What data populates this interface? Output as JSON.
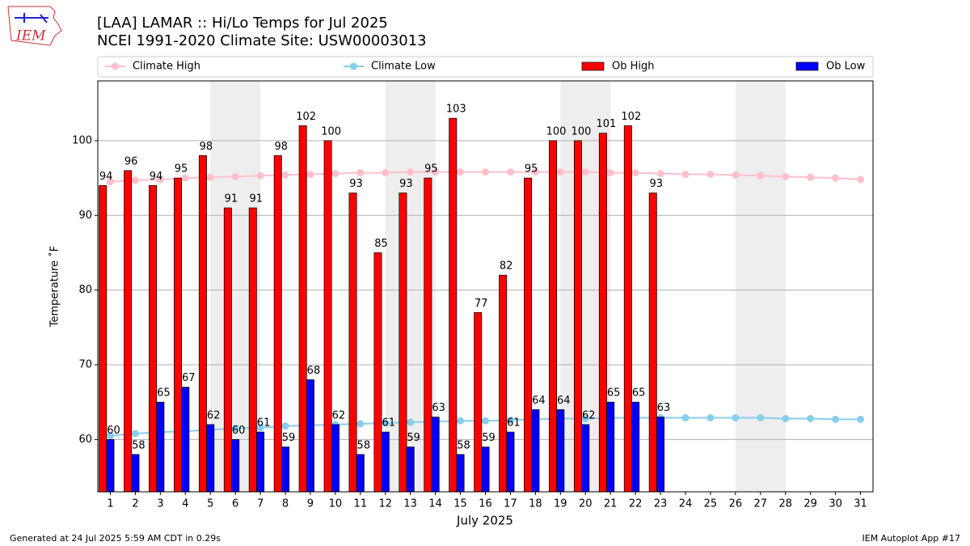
{
  "logo_text": "IEM",
  "footer_left": "Generated at 24 Jul 2025 5:59 AM CDT in 0.29s",
  "footer_right": "IEM Autoplot App #17",
  "chart_data": {
    "type": "bar",
    "title": "[LAA] LAMAR :: Hi/Lo Temps for Jul 2025",
    "subtitle": "NCEI 1991-2020 Climate Site: USW00003013",
    "ylabel": "Temperature ˚F",
    "xlabel": "July 2025",
    "categories": [
      "1",
      "2",
      "3",
      "4",
      "5",
      "6",
      "7",
      "8",
      "9",
      "10",
      "11",
      "12",
      "13",
      "14",
      "15",
      "16",
      "17",
      "18",
      "19",
      "20",
      "21",
      "22",
      "23",
      "24",
      "25",
      "26",
      "27",
      "28",
      "29",
      "30",
      "31"
    ],
    "weekend_bands": [
      [
        5,
        6
      ],
      [
        12,
        13
      ],
      [
        19,
        20
      ],
      [
        26,
        27
      ]
    ],
    "series": [
      {
        "name": "Climate High",
        "kind": "line",
        "color": "#ffc0cb",
        "values": [
          94.5,
          94.7,
          94.8,
          95.0,
          95.1,
          95.2,
          95.3,
          95.4,
          95.5,
          95.6,
          95.7,
          95.7,
          95.8,
          95.8,
          95.8,
          95.8,
          95.8,
          95.8,
          95.8,
          95.8,
          95.7,
          95.7,
          95.6,
          95.5,
          95.5,
          95.4,
          95.3,
          95.2,
          95.1,
          95.0,
          94.8
        ]
      },
      {
        "name": "Climate Low",
        "kind": "line",
        "color": "#87ceeb",
        "values": [
          60.5,
          60.8,
          61.0,
          61.1,
          61.3,
          61.5,
          61.6,
          61.8,
          61.9,
          62.0,
          62.1,
          62.2,
          62.3,
          62.4,
          62.5,
          62.5,
          62.6,
          62.7,
          62.8,
          62.8,
          62.9,
          62.9,
          62.9,
          62.9,
          62.9,
          62.9,
          62.9,
          62.8,
          62.8,
          62.7,
          62.7
        ]
      },
      {
        "name": "Ob High",
        "kind": "bar",
        "color": "#ff0000",
        "values": [
          94,
          96,
          94,
          95,
          98,
          91,
          91,
          98,
          102,
          100,
          93,
          85,
          93,
          95,
          103,
          77,
          82,
          95,
          100,
          100,
          101,
          102,
          93,
          null,
          null,
          null,
          null,
          null,
          null,
          null,
          null
        ]
      },
      {
        "name": "Ob Low",
        "kind": "bar",
        "color": "#0000ff",
        "values": [
          60,
          58,
          65,
          67,
          62,
          60,
          61,
          59,
          68,
          62,
          58,
          61,
          59,
          63,
          58,
          59,
          61,
          64,
          64,
          62,
          65,
          65,
          63,
          null,
          null,
          null,
          null,
          null,
          null,
          null,
          null
        ]
      }
    ],
    "ylim": [
      53,
      108
    ],
    "yticks": [
      60,
      70,
      80,
      90,
      100
    ],
    "grid": true
  }
}
